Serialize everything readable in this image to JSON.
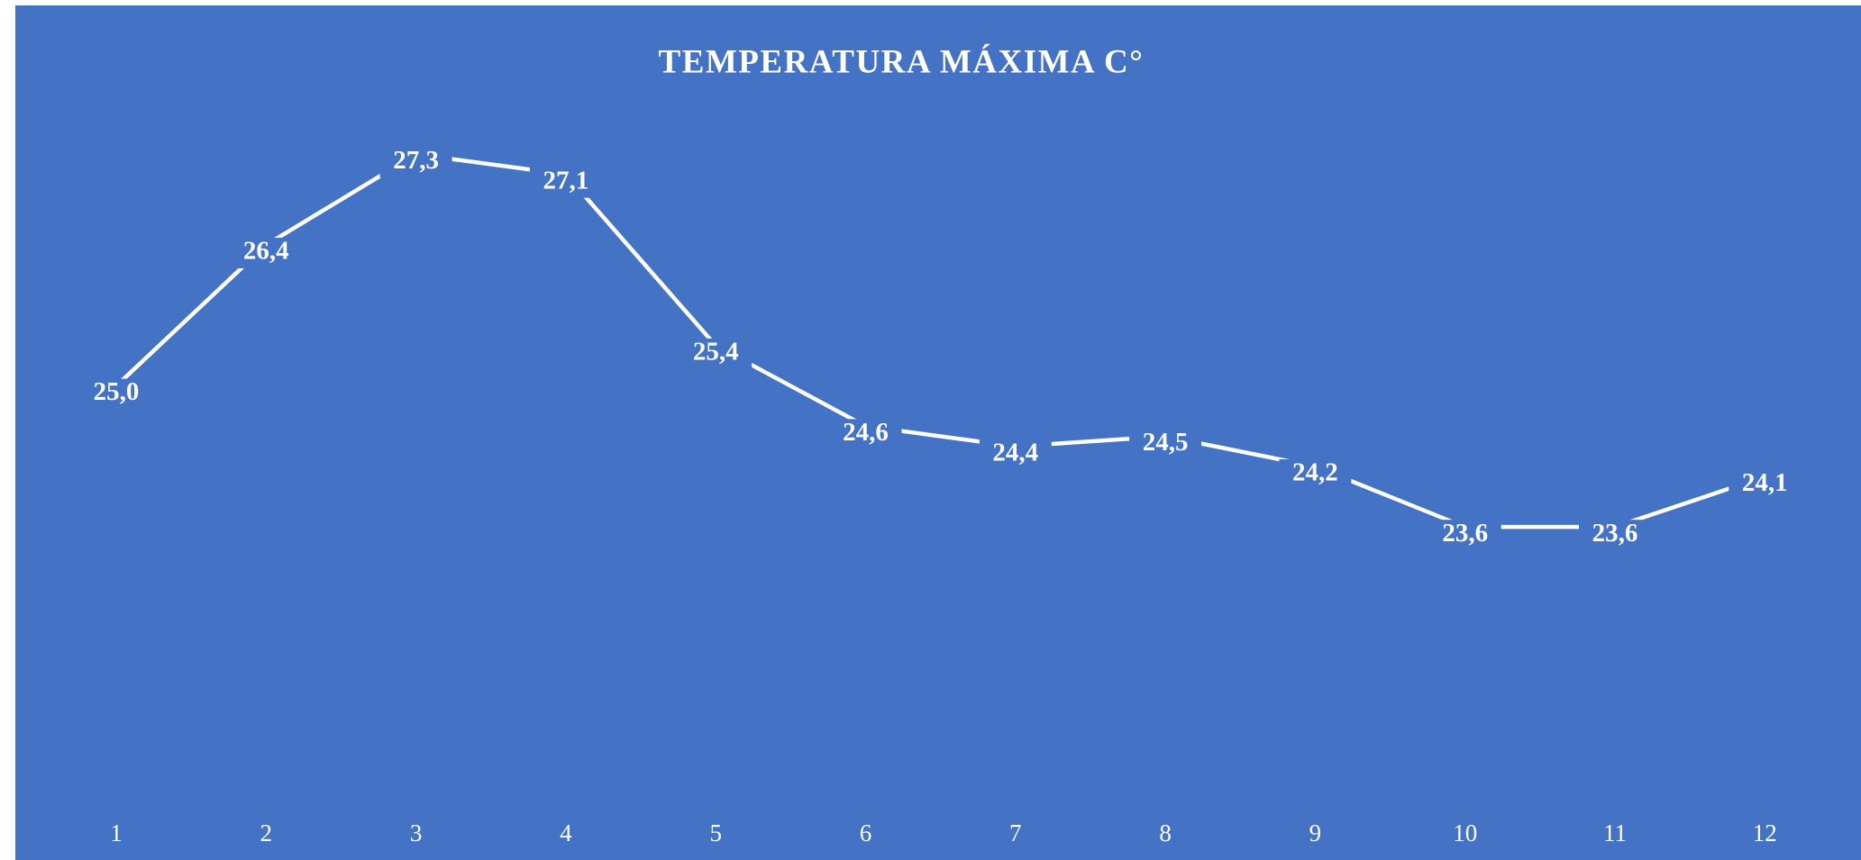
{
  "chart_data": {
    "type": "line",
    "title": "TEMPERATURA MÁXIMA C°",
    "categories": [
      "1",
      "2",
      "3",
      "4",
      "5",
      "6",
      "7",
      "8",
      "9",
      "10",
      "11",
      "12"
    ],
    "values": [
      25.0,
      26.4,
      27.3,
      27.1,
      25.4,
      24.6,
      24.4,
      24.5,
      24.2,
      23.6,
      23.6,
      24.1
    ],
    "value_labels": [
      "25,0",
      "26,4",
      "27,3",
      "27,1",
      "25,4",
      "24,6",
      "24,4",
      "24,5",
      "24,2",
      "23,6",
      "23,6",
      "24,1"
    ],
    "color": "#ffffff",
    "background": "#4472c4",
    "ylim": [
      21,
      28
    ]
  }
}
